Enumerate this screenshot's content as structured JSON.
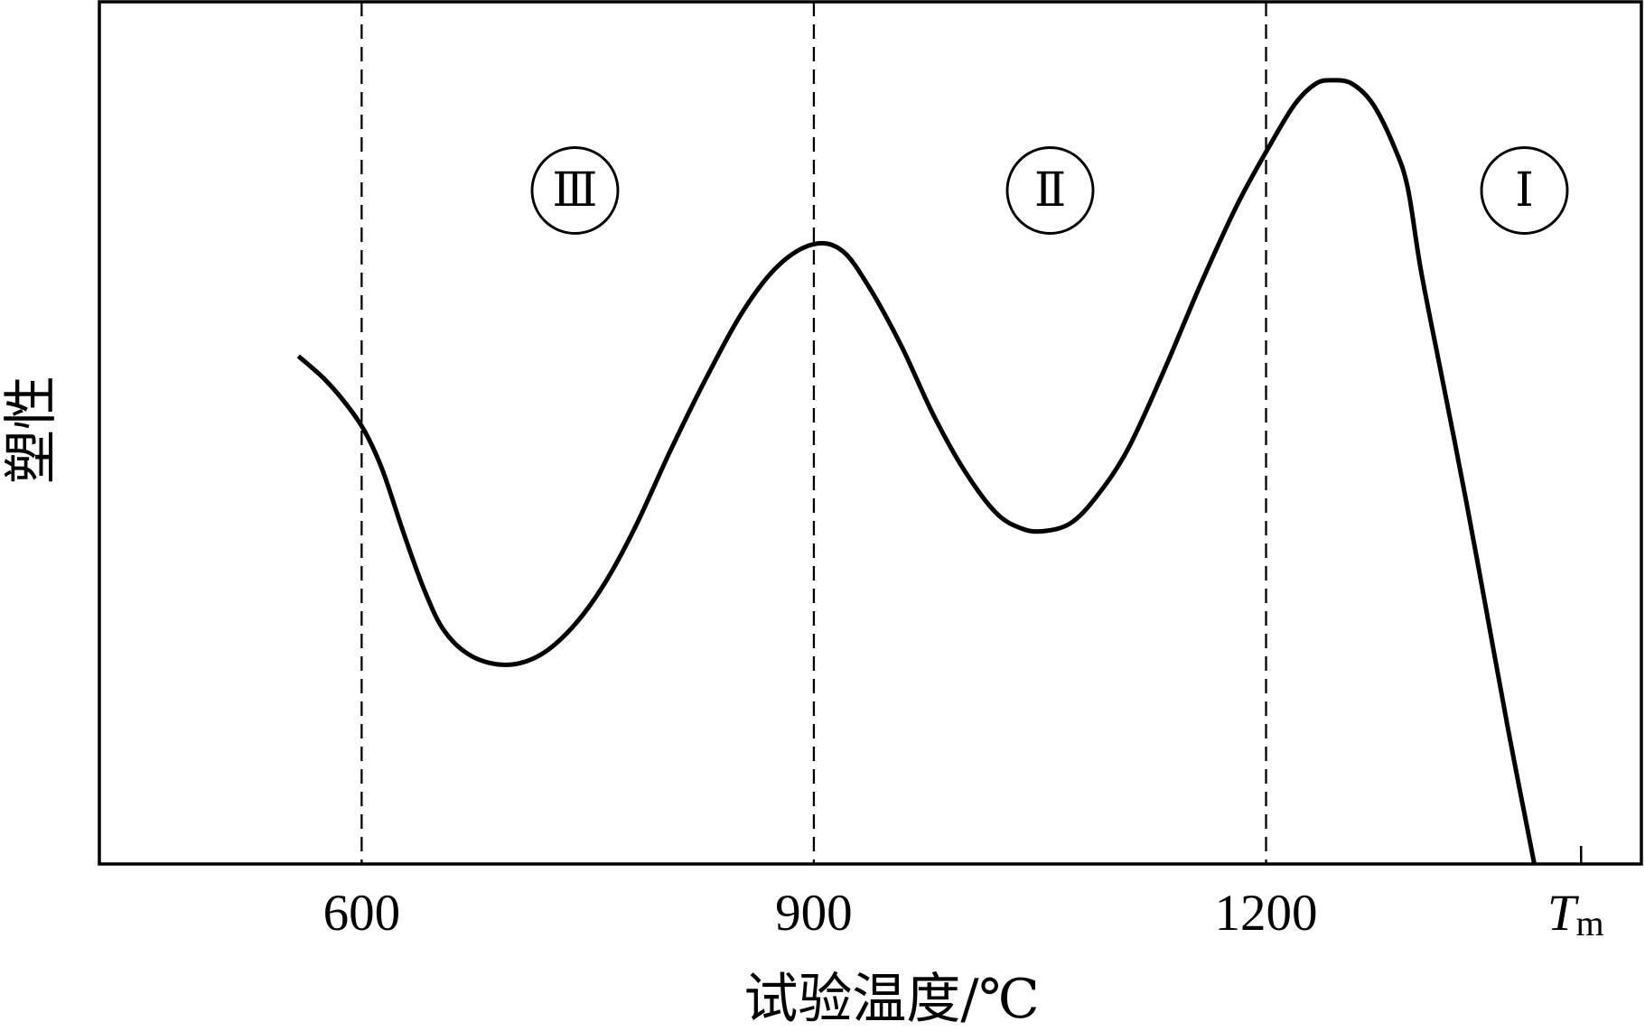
{
  "chart_data": {
    "type": "line",
    "xlabel": "试验温度/℃",
    "ylabel": "塑性",
    "xlim": [
      426,
      1449
    ],
    "ylim": [
      0,
      100
    ],
    "grid": false,
    "x_ticks": [
      {
        "value": 600,
        "label": "600"
      },
      {
        "value": 900,
        "label": "900"
      },
      {
        "value": 1200,
        "label": "1200"
      },
      {
        "value": 1409,
        "label": "T",
        "label_sub": "m"
      }
    ],
    "reference_lines": [
      600,
      900,
      1200
    ],
    "regions": [
      {
        "label": "Ⅲ",
        "from": 600,
        "to": 900
      },
      {
        "label": "Ⅱ",
        "from": 900,
        "to": 1200
      },
      {
        "label": "Ⅰ",
        "from": 1200,
        "to": 1409
      }
    ],
    "series": [
      {
        "x": [
          558,
          575,
          589,
          602,
          614,
          628,
          642,
          655,
          673,
          696,
          718,
          739,
          760,
          781,
          805,
          829,
          854,
          877,
          900,
          919,
          937,
          958,
          979,
          1000,
          1021,
          1038,
          1052,
          1070,
          1087,
          1108,
          1132,
          1157,
          1181,
          1202,
          1219,
          1233,
          1244,
          1257,
          1271,
          1285,
          1294,
          1303,
          1318,
          1333,
          1347,
          1361,
          1378
        ],
        "y": [
          58.9,
          56.3,
          53.5,
          50.2,
          45.6,
          38.3,
          31.6,
          27.0,
          24.1,
          23.1,
          24.2,
          27.3,
          32.2,
          38.9,
          48.0,
          56.5,
          64.4,
          69.5,
          71.9,
          71.1,
          66.8,
          60.1,
          52.2,
          45.6,
          40.7,
          38.9,
          38.6,
          39.5,
          42.5,
          48.0,
          57.1,
          67.4,
          76.5,
          83.2,
          88.1,
          90.5,
          90.9,
          90.5,
          88.1,
          83.2,
          78.4,
          68.6,
          55.3,
          41.9,
          28.6,
          15.2,
          0
        ]
      }
    ]
  },
  "colors": {
    "ink": "#000000",
    "background": "#ffffff"
  }
}
